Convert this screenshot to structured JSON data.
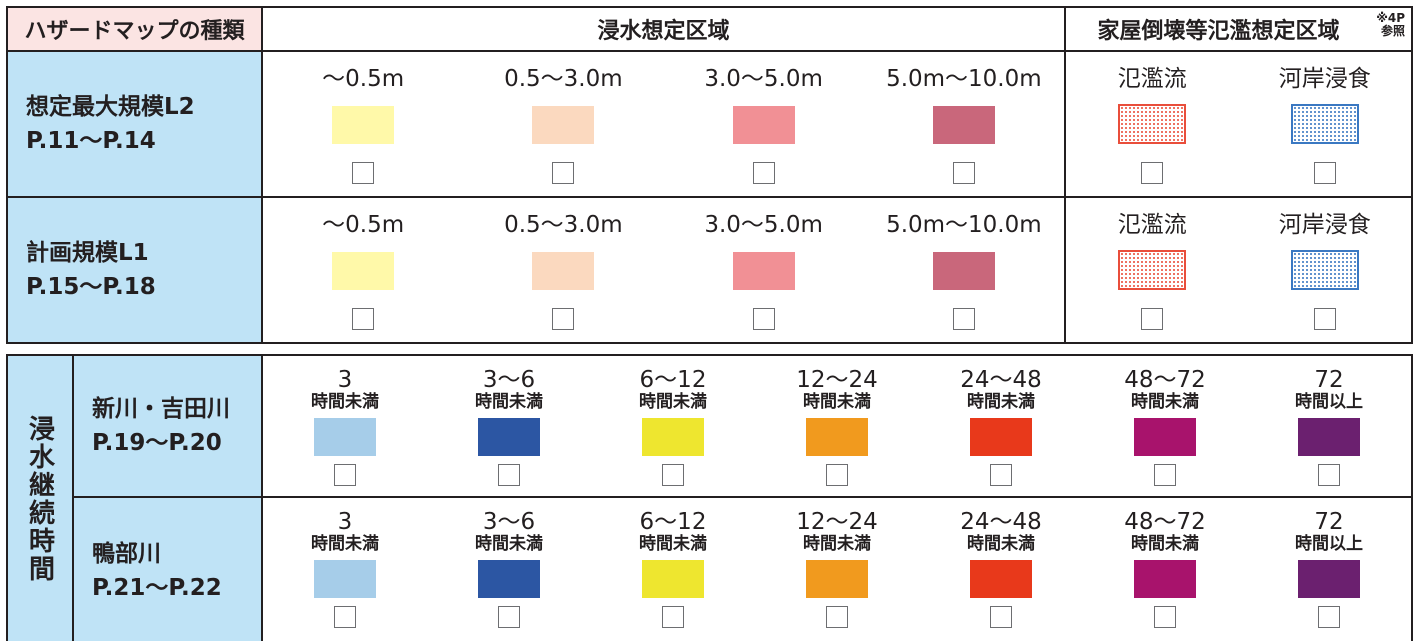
{
  "header": {
    "kind": "ハザードマップの種類",
    "flood_area": "浸水想定区域",
    "house_area": "家屋倒壊等氾濫想定区域",
    "note_line1": "※4P",
    "note_line2": "参照"
  },
  "depth_rows": [
    {
      "title": "想定最大規模L2",
      "pages": "P.11～P.14",
      "depths": [
        {
          "label": "～0.5m",
          "color": "#fff9a9",
          "checked": false
        },
        {
          "label": "0.5～3.0m",
          "color": "#fbd9bf",
          "checked": false
        },
        {
          "label": "3.0～5.0m",
          "color": "#f19095",
          "checked": false
        },
        {
          "label": "5.0m～10.0m",
          "color": "#c9677b",
          "checked": false
        }
      ],
      "house": [
        {
          "label": "氾濫流",
          "color": "#e94e3b",
          "checked": false
        },
        {
          "label": "河岸浸食",
          "color": "#3a78c2",
          "checked": false
        }
      ]
    },
    {
      "title": "計画規模L1",
      "pages": "P.15～P.18",
      "depths": [
        {
          "label": "～0.5m",
          "color": "#fff9a9",
          "checked": false
        },
        {
          "label": "0.5～3.0m",
          "color": "#fbd9bf",
          "checked": false
        },
        {
          "label": "3.0～5.0m",
          "color": "#f19095",
          "checked": false
        },
        {
          "label": "5.0m～10.0m",
          "color": "#c9677b",
          "checked": false
        }
      ],
      "house": [
        {
          "label": "氾濫流",
          "color": "#e94e3b",
          "checked": false
        },
        {
          "label": "河岸浸食",
          "color": "#3a78c2",
          "checked": false
        }
      ]
    }
  ],
  "duration": {
    "title": "浸水継続時間",
    "rows": [
      {
        "title": "新川・吉田川",
        "pages": "P.19～P.20",
        "items": [
          {
            "value": "3",
            "unit": "時間未満",
            "color": "#a6cde9",
            "checked": false
          },
          {
            "value": "3～6",
            "unit": "時間未満",
            "color": "#2c56a3",
            "checked": false
          },
          {
            "value": "6～12",
            "unit": "時間未満",
            "color": "#eee62f",
            "checked": false
          },
          {
            "value": "12～24",
            "unit": "時間未満",
            "color": "#f19a1e",
            "checked": false
          },
          {
            "value": "24～48",
            "unit": "時間未満",
            "color": "#e8391b",
            "checked": false
          },
          {
            "value": "48～72",
            "unit": "時間未満",
            "color": "#a8136c",
            "checked": false
          },
          {
            "value": "72",
            "unit": "時間以上",
            "color": "#6b206f",
            "checked": false
          }
        ]
      },
      {
        "title": "鴨部川",
        "pages": "P.21～P.22",
        "items": [
          {
            "value": "3",
            "unit": "時間未満",
            "color": "#a6cde9",
            "checked": false
          },
          {
            "value": "3～6",
            "unit": "時間未満",
            "color": "#2c56a3",
            "checked": false
          },
          {
            "value": "6～12",
            "unit": "時間未満",
            "color": "#eee62f",
            "checked": false
          },
          {
            "value": "12～24",
            "unit": "時間未満",
            "color": "#f19a1e",
            "checked": false
          },
          {
            "value": "24～48",
            "unit": "時間未満",
            "color": "#e8391b",
            "checked": false
          },
          {
            "value": "48～72",
            "unit": "時間未満",
            "color": "#a8136c",
            "checked": false
          },
          {
            "value": "72",
            "unit": "時間以上",
            "color": "#6b206f",
            "checked": false
          }
        ]
      }
    ]
  }
}
